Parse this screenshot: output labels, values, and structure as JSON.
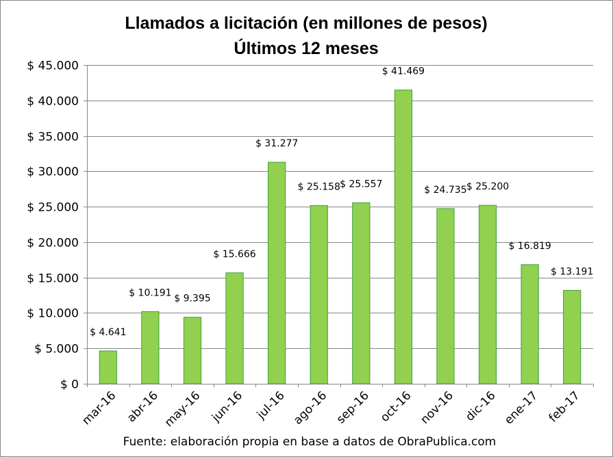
{
  "chart_data": {
    "type": "bar",
    "title": "Llamados a licitación (en millones de pesos)",
    "subtitle": "Últimos 12 meses",
    "categories": [
      "mar-16",
      "abr-16",
      "may-16",
      "jun-16",
      "jul-16",
      "ago-16",
      "sep-16",
      "oct-16",
      "nov-16",
      "dic-16",
      "ene-17",
      "feb-17"
    ],
    "values": [
      4641,
      10191,
      9395,
      15666,
      31277,
      25158,
      25557,
      41469,
      24735,
      25200,
      16819,
      13191
    ],
    "data_labels": [
      "$ 4.641",
      "$ 10.191",
      "$ 9.395",
      "$ 15.666",
      "$ 31.277",
      "$ 25.158",
      "$ 25.557",
      "$ 41.469",
      "$ 24.735",
      "$ 25.200",
      "$ 16.819",
      "$ 13.191"
    ],
    "y_ticks": [
      0,
      5000,
      10000,
      15000,
      20000,
      25000,
      30000,
      35000,
      40000,
      45000
    ],
    "y_tick_labels": [
      "$ 0",
      "$ 5.000",
      "$ 10.000",
      "$ 15.000",
      "$ 20.000",
      "$ 25.000",
      "$ 30.000",
      "$ 35.000",
      "$ 40.000",
      "$ 45.000"
    ],
    "ylim": [
      0,
      45000
    ],
    "grid": true,
    "legend": "none",
    "bar_color": "#92D050",
    "bar_edge_color": "#3CA03C",
    "source": "Fuente: elaboración propia en base a datos de ObraPublica.com"
  }
}
